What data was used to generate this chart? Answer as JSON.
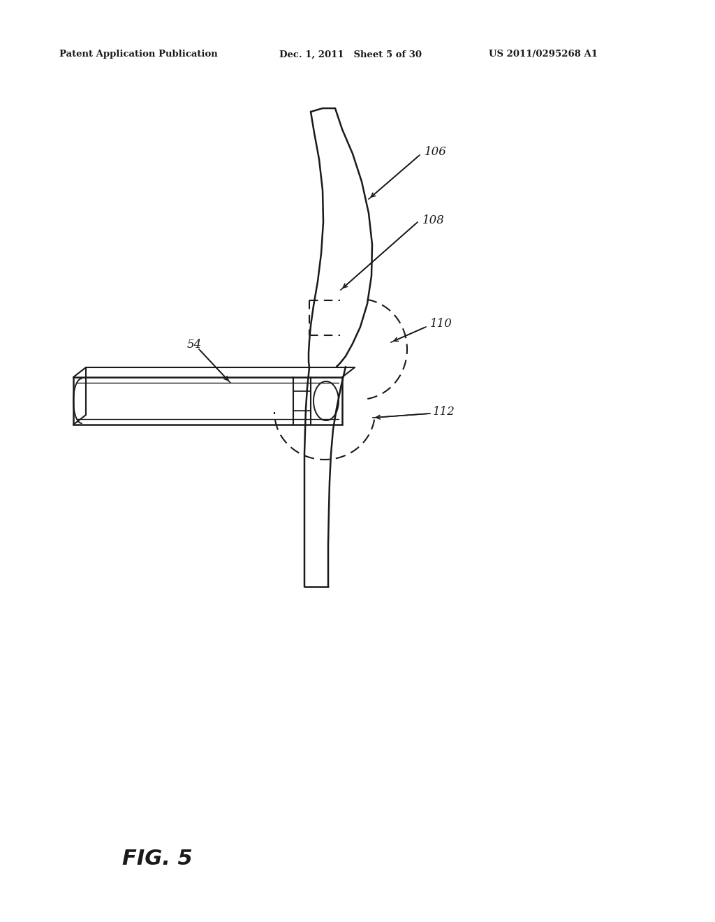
{
  "bg_color": "#ffffff",
  "line_color": "#1a1a1a",
  "header_left": "Patent Application Publication",
  "header_mid": "Dec. 1, 2011   Sheet 5 of 30",
  "header_right": "US 2011/0295268 A1",
  "figure_label": "FIG. 5"
}
